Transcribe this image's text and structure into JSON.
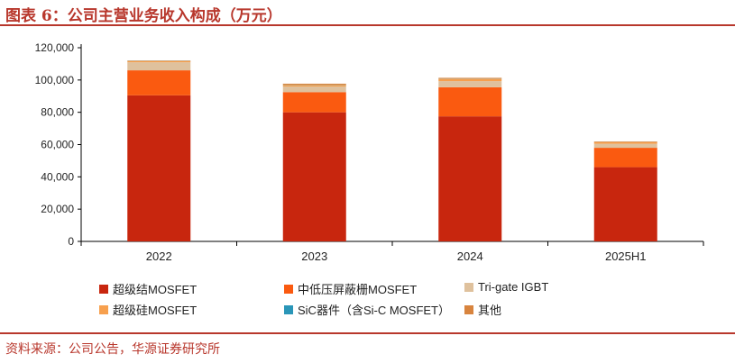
{
  "figure": {
    "title": "图表 6：公司主营业务收入构成（万元）",
    "source": "资料来源：公司公告，华源证券研究所"
  },
  "chart_data": {
    "type": "bar",
    "stacked": true,
    "categories": [
      "2022",
      "2023",
      "2024",
      "2025H1"
    ],
    "ylim": [
      0,
      120000
    ],
    "yticks": [
      0,
      20000,
      40000,
      60000,
      80000,
      100000,
      120000
    ],
    "ytick_labels": [
      "0",
      "20,000",
      "40,000",
      "60,000",
      "80,000",
      "100,000",
      "120,000"
    ],
    "grid": false,
    "legend_position": "bottom",
    "series": [
      {
        "name": "超级结MOSFET",
        "color": "#c8260e",
        "values": [
          90500,
          80000,
          77500,
          46000
        ]
      },
      {
        "name": "中低压屏蔽栅MOSFET",
        "color": "#fa5a10",
        "values": [
          15500,
          12500,
          18000,
          12000
        ]
      },
      {
        "name": "Tri-gate IGBT",
        "color": "#dfc19d",
        "values": [
          5000,
          3500,
          3800,
          2500
        ]
      },
      {
        "name": "超级硅MOSFET",
        "color": "#f7a04e",
        "values": [
          800,
          1000,
          1400,
          900
        ]
      },
      {
        "name": "SiC器件（含Si-C MOSFET）",
        "color": "#2a96b8",
        "values": [
          100,
          120,
          150,
          80
        ]
      },
      {
        "name": "其他",
        "color": "#d8843e",
        "values": [
          200,
          600,
          500,
          420
        ]
      }
    ]
  }
}
